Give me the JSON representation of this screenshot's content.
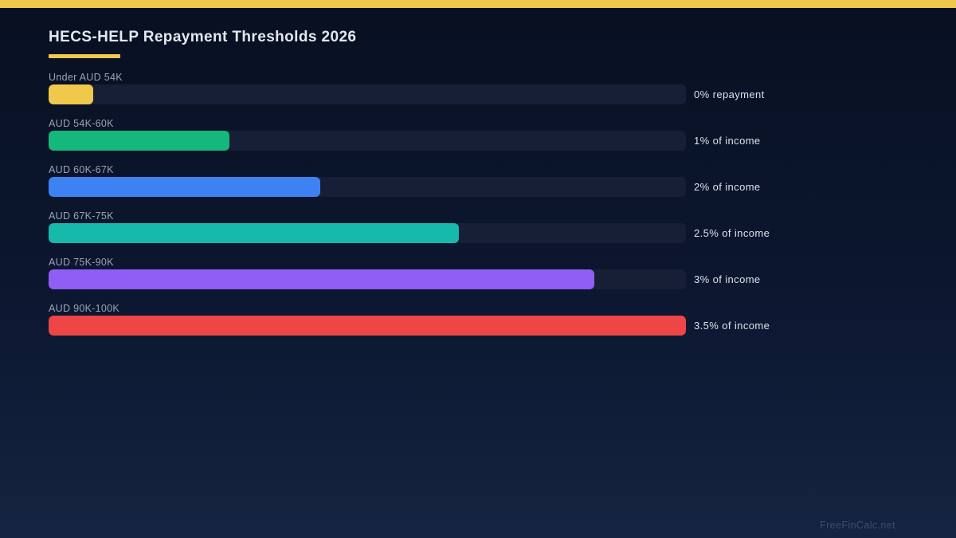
{
  "page": {
    "title": "HECS-HELP Repayment Thresholds 2026",
    "watermark": "FreeFinCalc.net",
    "accent_color": "#f0c84b",
    "track_color": "#161f36",
    "background_top": "#081021",
    "background_bottom": "#152441"
  },
  "chart_data": {
    "type": "bar",
    "orientation": "horizontal",
    "title": "HECS-HELP Repayment Thresholds 2026",
    "categories": [
      "Under AUD 54K",
      "AUD 54K-60K",
      "AUD 60K-67K",
      "AUD 67K-75K",
      "AUD 75K-90K",
      "AUD 90K-100K"
    ],
    "value_labels": [
      "0% repayment",
      "1% of income",
      "2% of income",
      "2.5% of income",
      "3% of income",
      "3.5% of income"
    ],
    "repayment_rates_percent": [
      0,
      1,
      2,
      2.5,
      3,
      3.5
    ],
    "bar_fill_percent": [
      7,
      28.4,
      42.6,
      64.4,
      85.6,
      100
    ],
    "bar_colors": [
      "#f0c84b",
      "#14b87c",
      "#3d82f2",
      "#16b9ac",
      "#8e5ef6",
      "#ee4546"
    ],
    "xlim": [
      0,
      100
    ],
    "grid": false,
    "legend": false
  }
}
